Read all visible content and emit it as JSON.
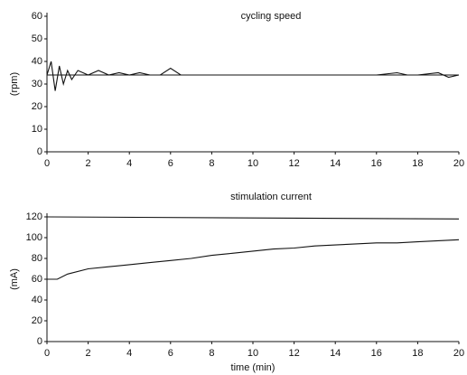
{
  "chart_data": [
    {
      "type": "line",
      "title": "cycling speed",
      "ylabel": "(rpm)",
      "xlim": [
        0,
        20
      ],
      "xticks": [
        0,
        2,
        4,
        6,
        8,
        10,
        12,
        14,
        16,
        18,
        20
      ],
      "ylim": [
        0,
        60
      ],
      "yticks": [
        0,
        10,
        20,
        30,
        40,
        50,
        60
      ],
      "series": [
        {
          "color": "#111111",
          "x": [
            0,
            0.2,
            0.4,
            0.6,
            0.8,
            1,
            1.2,
            1.5,
            2,
            2.5,
            3,
            3.5,
            4,
            4.5,
            5,
            5.5,
            6,
            6.5,
            7,
            8,
            9,
            10,
            11,
            12,
            13,
            14,
            15,
            16,
            17,
            17.5,
            18,
            19,
            19.5,
            20
          ],
          "values": [
            34,
            40,
            27,
            38,
            30,
            36,
            32,
            36,
            34,
            36,
            34,
            35,
            34,
            35,
            34,
            34,
            37,
            34,
            34,
            34,
            34,
            34,
            34,
            34,
            34,
            34,
            34,
            34,
            35,
            34,
            34,
            35,
            33,
            34
          ]
        },
        {
          "color": "#111111",
          "x": [
            0,
            20
          ],
          "values": [
            34,
            34
          ]
        }
      ]
    },
    {
      "type": "line",
      "title": "stimulation current",
      "ylabel": "(mA)",
      "xlabel": "time (min)",
      "xlim": [
        0,
        20
      ],
      "xticks": [
        0,
        2,
        4,
        6,
        8,
        10,
        12,
        14,
        16,
        18,
        20
      ],
      "ylim": [
        0,
        120
      ],
      "yticks": [
        0,
        20,
        40,
        60,
        80,
        100,
        120
      ],
      "series": [
        {
          "color": "#111111",
          "x": [
            0,
            20
          ],
          "values": [
            120,
            118
          ]
        },
        {
          "color": "#111111",
          "x": [
            0,
            0.5,
            1,
            2,
            3,
            4,
            5,
            6,
            7,
            8,
            9,
            10,
            11,
            12,
            13,
            14,
            15,
            16,
            17,
            18,
            19,
            20
          ],
          "values": [
            60,
            60,
            65,
            70,
            72,
            74,
            76,
            78,
            80,
            83,
            85,
            87,
            89,
            90,
            92,
            93,
            94,
            95,
            95,
            96,
            97,
            98
          ]
        }
      ]
    }
  ]
}
